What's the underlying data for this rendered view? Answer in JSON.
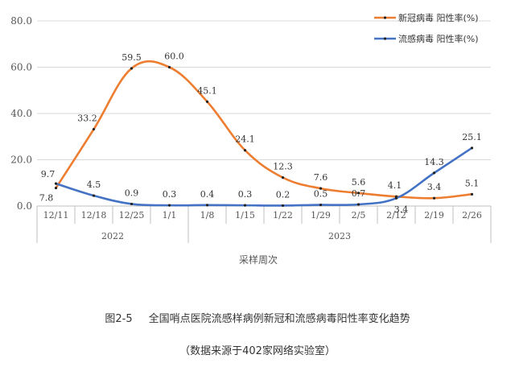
{
  "chart_data": {
    "type": "line",
    "categories": [
      "12/11",
      "12/18",
      "12/25",
      "1/1",
      "1/8",
      "1/15",
      "1/22",
      "1/29",
      "2/5",
      "2/12",
      "2/19",
      "2/26"
    ],
    "year_groups": [
      {
        "label": "2022",
        "from": 0,
        "to": 3
      },
      {
        "label": "2023",
        "from": 4,
        "to": 11
      }
    ],
    "xlabel": "采样周次",
    "ylim": [
      0,
      80
    ],
    "yticks": [
      "0.0",
      "20.0",
      "40.0",
      "60.0",
      "80.0"
    ],
    "legend_position": "top-right",
    "series": [
      {
        "name": "新冠病毒 阳性率(%)",
        "color": "#ED7D31",
        "values": [
          7.8,
          33.2,
          59.5,
          60.0,
          45.1,
          24.1,
          12.3,
          7.6,
          5.6,
          4.1,
          3.4,
          5.1
        ],
        "labels": [
          "7.8",
          "33.2",
          "59.5",
          "60.0",
          "45.1",
          "24.1",
          "12.3",
          "7.6",
          "5.6",
          "4.1",
          "3.4",
          "5.1"
        ]
      },
      {
        "name": "流感病毒 阳性率(%)",
        "color": "#4472C4",
        "values": [
          9.7,
          4.5,
          0.9,
          0.3,
          0.4,
          0.3,
          0.2,
          0.5,
          0.7,
          3.4,
          14.3,
          25.1
        ],
        "labels": [
          "9.7",
          "4.5",
          "0.9",
          "0.3",
          "0.4",
          "0.3",
          "0.2",
          "0.5",
          "0.7",
          "3.4",
          "14.3",
          "25.1"
        ]
      }
    ]
  },
  "caption": {
    "figure_no": "图2-5",
    "title": "全国哨点医院流感样病例新冠和流感病毒阳性率变化趋势",
    "source": "（数据来源于402家网络实验室）"
  }
}
